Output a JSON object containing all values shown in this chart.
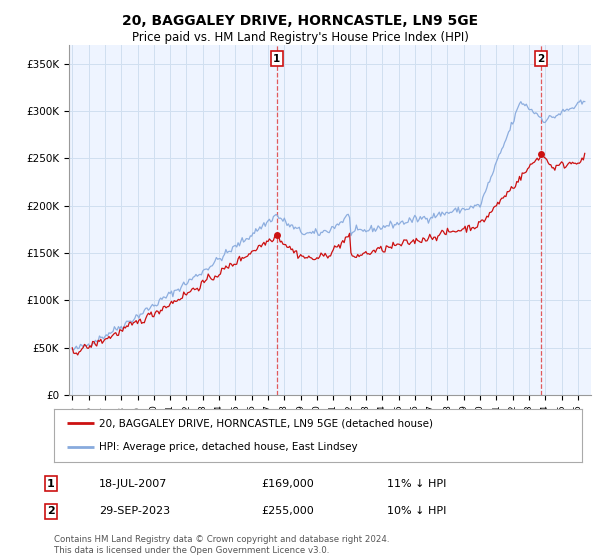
{
  "title": "20, BAGGALEY DRIVE, HORNCASTLE, LN9 5GE",
  "subtitle": "Price paid vs. HM Land Registry's House Price Index (HPI)",
  "hpi_label": "HPI: Average price, detached house, East Lindsey",
  "property_label": "20, BAGGALEY DRIVE, HORNCASTLE, LN9 5GE (detached house)",
  "sale1_date": "18-JUL-2007",
  "sale1_price": "£169,000",
  "sale1_hpi_text": "11% ↓ HPI",
  "sale1_x": 2007.54,
  "sale1_y": 169000,
  "sale2_date": "29-SEP-2023",
  "sale2_price": "£255,000",
  "sale2_hpi_text": "10% ↓ HPI",
  "sale2_x": 2023.75,
  "sale2_y": 255000,
  "ylim": [
    0,
    370000
  ],
  "xlim_start": 1994.8,
  "xlim_end": 2026.8,
  "hpi_color": "#88aadd",
  "property_color": "#cc1111",
  "dashed_color": "#dd3333",
  "grid_color": "#d0dff0",
  "background_color": "#ffffff",
  "chart_bg": "#eef4ff",
  "footer": "Contains HM Land Registry data © Crown copyright and database right 2024.\nThis data is licensed under the Open Government Licence v3.0."
}
